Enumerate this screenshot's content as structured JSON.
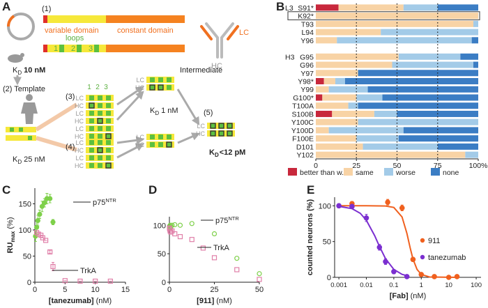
{
  "diagram": {
    "panel": "A",
    "step1": "(1)",
    "variable_domain": "variable domain",
    "constant_domain": "constant domain",
    "loops": "loops",
    "loop_numbers": [
      "1",
      "2",
      "3"
    ],
    "lc": "LC",
    "hc": "HC",
    "kd_symbol": "K",
    "kd_subscript": "D",
    "kd_mouse": "10 nM",
    "step2": "(2) Template",
    "step3": "(3)",
    "step4": "(4)",
    "step5": "(5)",
    "intermediate": "Intermediate",
    "kd_template": "25 nM",
    "kd_intermediate": "1 nM",
    "kd_final": "<12 pM"
  },
  "chart_data": [
    {
      "panel": "B",
      "type": "bar",
      "orientation": "horizontal",
      "stacked": true,
      "group_labels": [
        "L3",
        "H3"
      ],
      "categories": [
        "S91*",
        "K92*",
        "T93",
        "L94",
        "Y96",
        null,
        "G95",
        "G96",
        "Y97",
        "Y98*",
        "Y99",
        "G100*",
        "T100A",
        "S100B",
        "Y100C",
        "Y100D",
        "F100E",
        "D101",
        "Y102"
      ],
      "series": [
        {
          "name": "better than w.t.",
          "color": "#c8283c",
          "values": [
            14,
            0,
            0,
            0,
            0,
            null,
            0,
            0,
            0,
            5,
            0,
            4,
            0,
            10,
            0,
            0,
            0,
            0,
            0
          ]
        },
        {
          "name": "same",
          "color": "#f8d3a5",
          "values": [
            40,
            100,
            97,
            40,
            13,
            null,
            51,
            47,
            26,
            7,
            8,
            21,
            20,
            26,
            26,
            8,
            25,
            29,
            92
          ]
        },
        {
          "name": "worse",
          "color": "#a3cbe8",
          "values": [
            21,
            0,
            3,
            60,
            83,
            null,
            38,
            50,
            0,
            6,
            24,
            16,
            6,
            14,
            74,
            46,
            26,
            46,
            8
          ]
        },
        {
          "name": "none",
          "color": "#3b7dc4",
          "values": [
            25,
            0,
            0,
            0,
            4,
            null,
            11,
            3,
            74,
            82,
            68,
            59,
            74,
            50,
            0,
            46,
            49,
            25,
            0
          ]
        }
      ],
      "xlim": [
        0,
        100
      ],
      "xticks": [
        0,
        25,
        50,
        75,
        {
          "value": 100,
          "label": "100%"
        }
      ],
      "grid": true
    },
    {
      "panel": "C",
      "type": "scatter",
      "xlabel": "[tanezumab]",
      "xlabel_unit": "(nM)",
      "ylabel": "RU",
      "ylabel_sub": "max",
      "ylabel_unit": "(%)",
      "xlim": [
        0,
        15
      ],
      "xticks": [
        0,
        5,
        10,
        15
      ],
      "ylim": [
        0,
        180
      ],
      "yticks": [
        0,
        50,
        100,
        150
      ],
      "series": [
        {
          "name": "p75",
          "name_sup": "NTR",
          "color": "#7ed04a",
          "marker": "circle",
          "filled": true,
          "x": [
            0.1,
            0.3,
            0.5,
            0.8,
            1.2,
            1.6,
            2,
            2.5,
            3
          ],
          "values": [
            88,
            105,
            118,
            130,
            145,
            152,
            160,
            160,
            115
          ],
          "errors": [
            10,
            12,
            10,
            8,
            10,
            8,
            10,
            8,
            5
          ]
        },
        {
          "name": "TrkA",
          "color": "#e07fa8",
          "marker": "square",
          "filled": false,
          "x": [
            0.3,
            0.6,
            1,
            1.3,
            1.8,
            2.5,
            3,
            5,
            7.5,
            10,
            12.5
          ],
          "values": [
            95,
            92,
            90,
            85,
            80,
            58,
            30,
            3,
            2,
            2,
            2
          ],
          "errors": [
            0,
            0,
            0,
            0,
            0,
            3,
            8,
            0,
            0,
            0,
            0
          ]
        }
      ]
    },
    {
      "panel": "D",
      "type": "scatter",
      "xlabel": "[911]",
      "xlabel_unit": "(nM)",
      "xlim": [
        0,
        50
      ],
      "xticks": [
        0,
        25,
        50
      ],
      "ylim": [
        0,
        115
      ],
      "yticks": [
        0,
        50,
        100
      ],
      "series": [
        {
          "name": "p75",
          "name_sup": "NTR",
          "color": "#7ed04a",
          "marker": "circle",
          "filled": false,
          "x": [
            0.05,
            0.2,
            0.4,
            0.8,
            1.5,
            3,
            6,
            12.5,
            25,
            37.5,
            50
          ],
          "values": [
            96,
            98,
            100,
            97,
            100,
            101,
            100,
            103,
            85,
            42,
            15
          ]
        },
        {
          "name": "TrkA",
          "color": "#e07fa8",
          "marker": "square",
          "filled": false,
          "x": [
            0.05,
            0.2,
            0.4,
            0.8,
            1.5,
            3,
            6,
            12.5,
            18.75,
            25,
            37.5,
            50
          ],
          "values": [
            95,
            93,
            90,
            88,
            90,
            85,
            80,
            75,
            60,
            43,
            22,
            5
          ]
        }
      ]
    },
    {
      "panel": "E",
      "type": "scatter",
      "log_x": true,
      "xlabel": "[Fab]",
      "xlabel_unit": "(nM)",
      "ylabel": "counted neurons (%)",
      "xlim": [
        0.0007,
        150
      ],
      "xticks": [
        0.001,
        0.01,
        0.1,
        1,
        10,
        100
      ],
      "ylim": [
        0,
        112
      ],
      "yticks": [
        0,
        50,
        100
      ],
      "series": [
        {
          "name": "911",
          "color": "#f0601e",
          "marker": "circle",
          "filled": true,
          "x": [
            0.003,
            0.06,
            0.2,
            0.5,
            1,
            3,
            10,
            20
          ],
          "values": [
            103,
            105,
            97,
            25,
            4,
            1,
            0,
            1
          ],
          "errors": [
            3,
            4,
            4,
            3,
            2,
            1,
            1,
            1
          ],
          "curve_x": [
            0.001,
            0.01,
            0.05,
            0.1,
            0.2,
            0.3,
            0.4,
            0.5,
            0.7,
            1,
            2,
            20
          ],
          "curve_values": [
            100,
            100,
            99.7,
            97.7,
            84.3,
            61.4,
            40.1,
            25.5,
            11.1,
            4.1,
            0.5,
            0
          ]
        },
        {
          "name": "tanezumab",
          "color": "#7b2fd0",
          "marker": "circle",
          "filled": true,
          "x": [
            0.001,
            0.003,
            0.01,
            0.03,
            0.05,
            0.1,
            0.3
          ],
          "values": [
            100,
            99,
            83,
            42,
            22,
            8,
            1
          ],
          "errors": [
            3,
            3,
            5,
            4,
            4,
            3,
            1
          ],
          "curve_x": [
            0.001,
            0.003,
            0.006,
            0.01,
            0.02,
            0.03,
            0.05,
            0.1,
            0.2,
            0.3
          ],
          "curve_values": [
            99.2,
            96,
            89.5,
            79.8,
            58.3,
            43.2,
            26.1,
            11.1,
            4.2,
            2.3
          ]
        }
      ]
    }
  ]
}
